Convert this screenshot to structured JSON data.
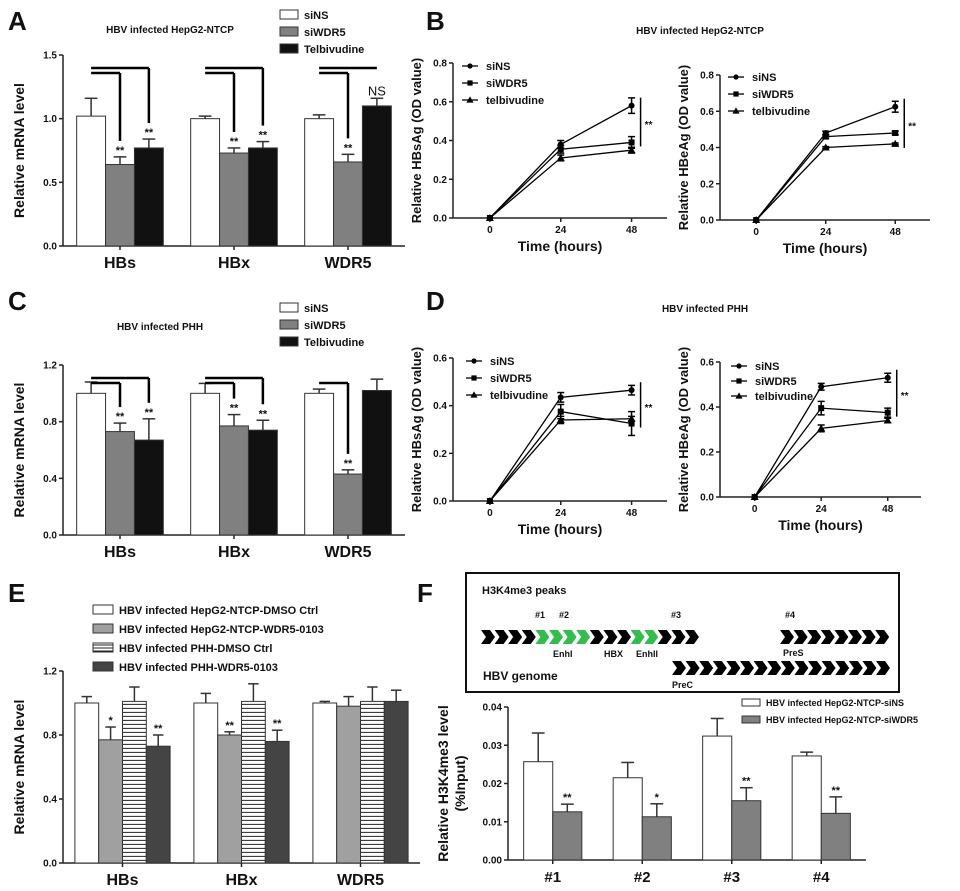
{
  "figure": {
    "panel_labels": [
      "A",
      "B",
      "C",
      "D",
      "E",
      "F"
    ],
    "shared_titles": {
      "B": "HBV infected HepG2-NTCP",
      "D": "HBV infected PHH"
    }
  },
  "genome_diagram": {
    "title": "H3K4me3 peaks",
    "peaks": [
      "#1",
      "#2",
      "#3",
      "#4"
    ],
    "features": [
      "EnhI",
      "HBX",
      "EnhII",
      "PreS"
    ],
    "genome_label": "HBV genome",
    "prec_label": "PreC",
    "highlight_color": "#2fbf4a",
    "base_color": "#000000"
  },
  "chart_data": [
    {
      "panel": "A",
      "type": "bar",
      "title": "HBV infected HepG2-NTCP",
      "ylabel": "Relative mRNA level",
      "ylim": [
        0,
        1.5
      ],
      "yticks": [
        0,
        0.5,
        1.0,
        1.5
      ],
      "ytick_labels": [
        "0.0",
        "0.5",
        "1.0",
        "1.5"
      ],
      "categories": [
        "HBs",
        "HBx",
        "WDR5"
      ],
      "legend": "top-right",
      "series": [
        {
          "name": "siNS",
          "color": "#ffffff",
          "values": [
            1.02,
            1.0,
            1.0
          ],
          "errors": [
            0.14,
            0.02,
            0.03
          ],
          "annotations": [
            "",
            "",
            ""
          ]
        },
        {
          "name": "siWDR5",
          "color": "#808080",
          "values": [
            0.64,
            0.73,
            0.66
          ],
          "errors": [
            0.06,
            0.04,
            0.06
          ],
          "annotations": [
            "**",
            "**",
            "**"
          ]
        },
        {
          "name": "Telbivudine",
          "color": "#111111",
          "values": [
            0.77,
            0.77,
            1.1
          ],
          "errors": [
            0.07,
            0.05,
            0.06
          ],
          "annotations": [
            "**",
            "**",
            "NS"
          ]
        }
      ],
      "comparisons": [
        {
          "category": 0,
          "series": [
            0,
            1
          ]
        },
        {
          "category": 0,
          "series": [
            0,
            2
          ]
        },
        {
          "category": 1,
          "series": [
            0,
            1
          ]
        },
        {
          "category": 1,
          "series": [
            0,
            2
          ]
        },
        {
          "category": 2,
          "series": [
            0,
            1
          ]
        },
        {
          "category": 2,
          "series": [
            0,
            2
          ]
        }
      ]
    },
    {
      "panel": "B",
      "type": "line",
      "ylabel": "Relative HBsAg (OD value)",
      "xlabel": "Time (hours)",
      "x": [
        0,
        24,
        48
      ],
      "xtick_labels": [
        "0",
        "24",
        "48"
      ],
      "xlim": [
        -12.5,
        60
      ],
      "ylim": [
        0,
        0.8
      ],
      "yticks": [
        0,
        0.2,
        0.4,
        0.6,
        0.8
      ],
      "ytick_labels": [
        "0.0",
        "0.2",
        "0.4",
        "0.6",
        "0.8"
      ],
      "legend": "top-left",
      "series": [
        {
          "name": "siNS",
          "marker": "circle",
          "values": [
            0,
            0.38,
            0.58
          ],
          "errors": [
            0,
            0.02,
            0.04
          ]
        },
        {
          "name": "siWDR5",
          "marker": "square",
          "values": [
            0,
            0.355,
            0.39
          ],
          "errors": [
            0,
            0.02,
            0.03
          ]
        },
        {
          "name": "telbivudine",
          "marker": "triangle",
          "values": [
            0,
            0.31,
            0.35
          ],
          "errors": [
            0,
            0.015,
            0.015
          ]
        }
      ],
      "significance": {
        "between": [
          0,
          1
        ],
        "label": "**"
      }
    },
    {
      "panel": "B",
      "type": "line",
      "ylabel": "Relative HBeAg (OD value)",
      "xlabel": "Time (hours)",
      "x": [
        0,
        24,
        48
      ],
      "xtick_labels": [
        "0",
        "24",
        "48"
      ],
      "xlim": [
        -12.5,
        60
      ],
      "ylim": [
        0,
        0.8
      ],
      "yticks": [
        0,
        0.2,
        0.4,
        0.6,
        0.8
      ],
      "ytick_labels": [
        "0.0",
        "0.2",
        "0.4",
        "0.6",
        "0.8"
      ],
      "legend": "top-left",
      "series": [
        {
          "name": "siNS",
          "marker": "circle",
          "values": [
            0,
            0.48,
            0.625
          ],
          "errors": [
            0,
            0.01,
            0.03
          ]
        },
        {
          "name": "siWDR5",
          "marker": "square",
          "values": [
            0,
            0.46,
            0.48
          ],
          "errors": [
            0,
            0.01,
            0.01
          ]
        },
        {
          "name": "telbivudine",
          "marker": "triangle",
          "values": [
            0,
            0.4,
            0.42
          ],
          "errors": [
            0,
            0.005,
            0.005
          ]
        }
      ],
      "significance": {
        "between": [
          0,
          2
        ],
        "label": "**"
      }
    },
    {
      "panel": "C",
      "type": "bar",
      "title": "HBV infected PHH",
      "ylabel": "Relative mRNA level",
      "ylim": [
        0,
        1.2
      ],
      "yticks": [
        0,
        0.4,
        0.8,
        1.2
      ],
      "ytick_labels": [
        "0.0",
        "0.4",
        "0.8",
        "1.2"
      ],
      "categories": [
        "HBs",
        "HBx",
        "WDR5"
      ],
      "legend": "top-right",
      "series": [
        {
          "name": "siNS",
          "color": "#ffffff",
          "values": [
            1.0,
            1.0,
            1.0
          ],
          "errors": [
            0.08,
            0.07,
            0.03
          ],
          "annotations": [
            "",
            "",
            ""
          ]
        },
        {
          "name": "siWDR5",
          "color": "#808080",
          "values": [
            0.73,
            0.77,
            0.43
          ],
          "errors": [
            0.06,
            0.08,
            0.03
          ],
          "annotations": [
            "**",
            "**",
            "**"
          ]
        },
        {
          "name": "Telbivudine",
          "color": "#111111",
          "values": [
            0.67,
            0.74,
            1.02
          ],
          "errors": [
            0.15,
            0.07,
            0.08
          ],
          "annotations": [
            "**",
            "**",
            ""
          ]
        }
      ],
      "comparisons": [
        {
          "category": 0,
          "series": [
            0,
            1
          ]
        },
        {
          "category": 0,
          "series": [
            0,
            2
          ]
        },
        {
          "category": 1,
          "series": [
            0,
            1
          ]
        },
        {
          "category": 1,
          "series": [
            0,
            2
          ]
        },
        {
          "category": 2,
          "series": [
            0,
            1
          ]
        }
      ]
    },
    {
      "panel": "D",
      "type": "line",
      "ylabel": "Relative HBsAg (OD value)",
      "xlabel": "Time (hours)",
      "x": [
        0,
        24,
        48
      ],
      "xtick_labels": [
        "0",
        "24",
        "48"
      ],
      "xlim": [
        -12.5,
        60
      ],
      "ylim": [
        0,
        0.6
      ],
      "yticks": [
        0,
        0.2,
        0.4,
        0.6
      ],
      "ytick_labels": [
        "0.0",
        "0.2",
        "0.4",
        "0.6"
      ],
      "legend": "top-left",
      "series": [
        {
          "name": "siNS",
          "marker": "circle",
          "values": [
            0,
            0.435,
            0.465
          ],
          "errors": [
            0,
            0.02,
            0.02
          ]
        },
        {
          "name": "siWDR5",
          "marker": "square",
          "values": [
            0,
            0.375,
            0.325
          ],
          "errors": [
            0,
            0.03,
            0.05
          ]
        },
        {
          "name": "telbivudine",
          "marker": "triangle",
          "values": [
            0,
            0.34,
            0.345
          ],
          "errors": [
            0,
            0.015,
            0.01
          ]
        }
      ],
      "significance": {
        "between": [
          0,
          1
        ],
        "label": "**"
      }
    },
    {
      "panel": "D",
      "type": "line",
      "ylabel": "Relative HBeAg (OD value)",
      "xlabel": "Time (hours)",
      "x": [
        0,
        24,
        48
      ],
      "xtick_labels": [
        "0",
        "24",
        "48"
      ],
      "xlim": [
        -12.5,
        60
      ],
      "ylim": [
        0,
        0.6
      ],
      "yticks": [
        0,
        0.2,
        0.4,
        0.6
      ],
      "ytick_labels": [
        "0.0",
        "0.2",
        "0.4",
        "0.6"
      ],
      "legend": "top-left",
      "series": [
        {
          "name": "siNS",
          "marker": "circle",
          "values": [
            0,
            0.49,
            0.53
          ],
          "errors": [
            0,
            0.015,
            0.02
          ]
        },
        {
          "name": "siWDR5",
          "marker": "square",
          "values": [
            0,
            0.395,
            0.375
          ],
          "errors": [
            0,
            0.03,
            0.02
          ]
        },
        {
          "name": "telbivudine",
          "marker": "triangle",
          "values": [
            0,
            0.305,
            0.34
          ],
          "errors": [
            0,
            0.015,
            0.01
          ]
        }
      ],
      "significance": {
        "between": [
          0,
          1
        ],
        "label": "**"
      }
    },
    {
      "panel": "E",
      "type": "bar",
      "ylabel": "Relative mRNA level",
      "ylim": [
        0,
        1.2
      ],
      "yticks": [
        0,
        0.4,
        0.8,
        1.2
      ],
      "ytick_labels": [
        "0.0",
        "0.4",
        "0.8",
        "1.2"
      ],
      "categories": [
        "HBs",
        "HBx",
        "WDR5"
      ],
      "legend": "top",
      "series": [
        {
          "name": "HBV infected HepG2-NTCP-DMSO Ctrl",
          "color": "#ffffff",
          "values": [
            1.0,
            1.0,
            1.0
          ],
          "errors": [
            0.04,
            0.06,
            0.01
          ],
          "annotations": [
            "",
            "",
            ""
          ]
        },
        {
          "name": "HBV infected HepG2-NTCP-WDR5-0103",
          "color": "#a0a0a0",
          "values": [
            0.77,
            0.8,
            0.98
          ],
          "errors": [
            0.08,
            0.02,
            0.06
          ],
          "annotations": [
            "*",
            "**",
            ""
          ]
        },
        {
          "name": "HBV infected PHH-DMSO Ctrl",
          "color": "#ffffff",
          "pattern": "horizontal-lines",
          "values": [
            1.01,
            1.01,
            1.01
          ],
          "errors": [
            0.09,
            0.11,
            0.09
          ],
          "annotations": [
            "",
            "",
            ""
          ]
        },
        {
          "name": "HBV infected PHH-WDR5-0103",
          "color": "#444444",
          "values": [
            0.73,
            0.76,
            1.01
          ],
          "errors": [
            0.07,
            0.07,
            0.07
          ],
          "annotations": [
            "**",
            "**",
            ""
          ]
        }
      ],
      "comparisons": []
    },
    {
      "panel": "F",
      "type": "bar",
      "ylabel": "Relative H3K4me3 level",
      "ylabel2": "(%Input)",
      "ylim": [
        0,
        0.04
      ],
      "yticks": [
        0,
        0.01,
        0.02,
        0.03,
        0.04
      ],
      "ytick_labels": [
        "0.00",
        "0.01",
        "0.02",
        "0.03",
        "0.04"
      ],
      "categories": [
        "#1",
        "#2",
        "#3",
        "#4"
      ],
      "legend": "top-right",
      "series": [
        {
          "name": "HBV infected HepG2-NTCP-siNS",
          "color": "#ffffff",
          "values": [
            0.0257,
            0.0215,
            0.0324,
            0.0272
          ],
          "errors": [
            0.0075,
            0.004,
            0.0046,
            0.001
          ],
          "annotations": [
            "",
            "",
            "",
            ""
          ]
        },
        {
          "name": "HBV infected HepG2-NTCP-siWDR5",
          "color": "#808080",
          "values": [
            0.0126,
            0.0113,
            0.0155,
            0.0122
          ],
          "errors": [
            0.002,
            0.0034,
            0.0034,
            0.0043
          ],
          "annotations": [
            "**",
            "*",
            "**",
            "**"
          ]
        }
      ],
      "comparisons": []
    }
  ]
}
